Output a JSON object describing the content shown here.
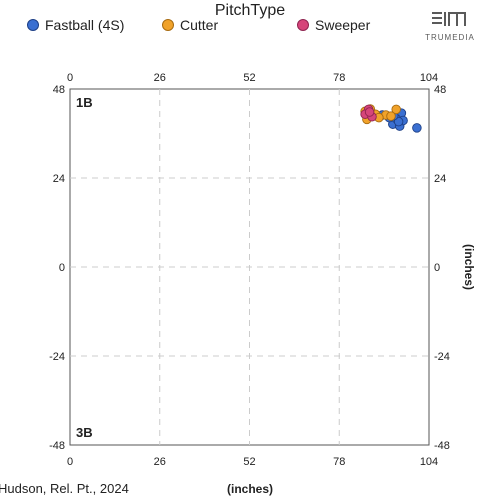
{
  "legend": {
    "title": "PitchType",
    "items": [
      {
        "label": "Fastball (4S)",
        "color": "#3a6fd1"
      },
      {
        "label": "Cutter",
        "color": "#f0a22a"
      },
      {
        "label": "Sweeper",
        "color": "#d6457a"
      }
    ]
  },
  "logo": {
    "text": "TRUMEDIA"
  },
  "caption": "Hudson, Rel. Pt., 2024",
  "chart_data": {
    "type": "scatter",
    "xlabel": "(inches)",
    "ylabel": "(inches)",
    "xlim": [
      0,
      104
    ],
    "ylim": [
      -48,
      48
    ],
    "xticks": [
      "0",
      "26",
      "52",
      "78",
      "104"
    ],
    "yticks": [
      "48",
      "24",
      "0",
      "-24",
      "-48"
    ],
    "grid": true,
    "legend_position": "top",
    "corner_labels": {
      "top": "1B",
      "bottom": "3B"
    },
    "series": [
      {
        "name": "Fastball (4S)",
        "color": "#3a6fd1",
        "points": [
          [
            94,
            39.0
          ],
          [
            95,
            40.5
          ],
          [
            96,
            41.5
          ],
          [
            93.5,
            38.5
          ],
          [
            95.5,
            38.0
          ],
          [
            96.5,
            39.5
          ],
          [
            94.5,
            40.0
          ],
          [
            92.5,
            40.3
          ],
          [
            90.5,
            41.0
          ],
          [
            95.2,
            39.2
          ],
          [
            93.8,
            40.8
          ],
          [
            100.5,
            37.5
          ]
        ]
      },
      {
        "name": "Cutter",
        "color": "#f0a22a",
        "points": [
          [
            85.5,
            42.0
          ],
          [
            87.5,
            41.5
          ],
          [
            86.5,
            40.5
          ],
          [
            88.5,
            41.2
          ],
          [
            91.5,
            41.0
          ],
          [
            94.5,
            42.5
          ],
          [
            86.0,
            39.8
          ],
          [
            87.0,
            42.6
          ],
          [
            89.5,
            40.3
          ],
          [
            93.0,
            40.7
          ]
        ]
      },
      {
        "name": "Sweeper",
        "color": "#d6457a",
        "points": [
          [
            86.5,
            42.5
          ],
          [
            85.5,
            41.2
          ],
          [
            87.5,
            40.5
          ],
          [
            86.8,
            41.8
          ]
        ]
      }
    ]
  }
}
